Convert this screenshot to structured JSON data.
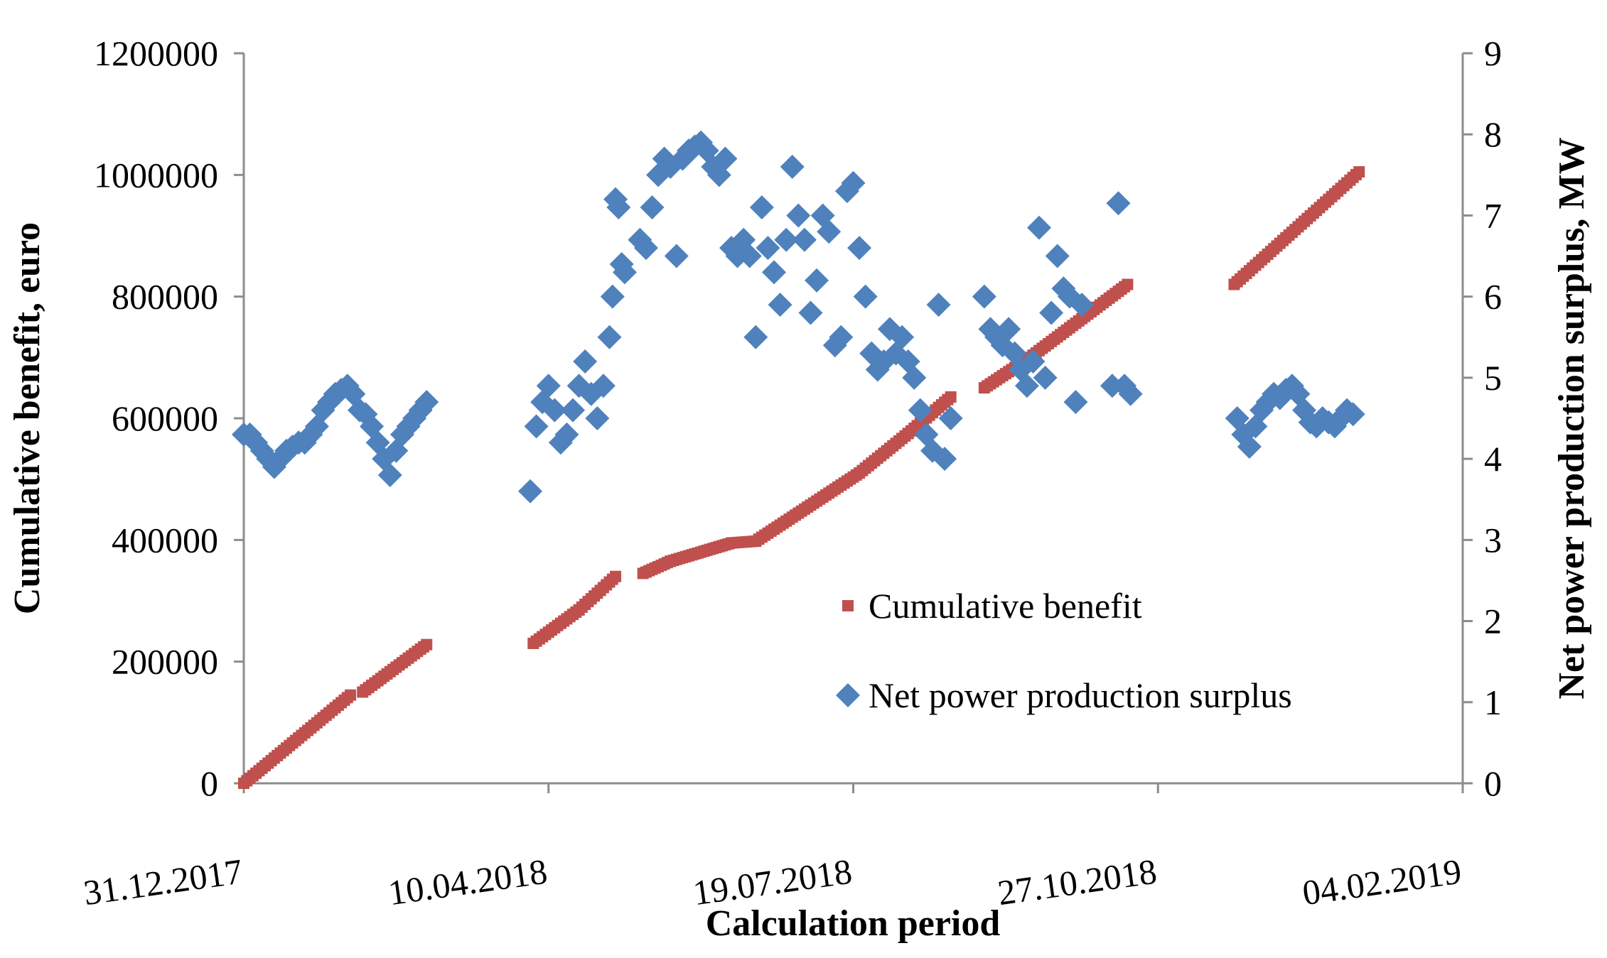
{
  "chart_data": {
    "type": "scatter",
    "title": "",
    "xlabel": "Calculation period",
    "ylabel_left": "Cumulative benefit, euro",
    "ylabel_right": "Net power production surplus, MW",
    "x_ticks": [
      "31.12.2017",
      "10.04.2018",
      "19.07.2018",
      "27.10.2018",
      "04.02.2019"
    ],
    "xlim_days": [
      0,
      400
    ],
    "ylim_left": [
      0,
      1200000
    ],
    "ylim_right": [
      0,
      9
    ],
    "y_ticks_left": [
      "0",
      "200000",
      "400000",
      "600000",
      "800000",
      "1000000",
      "1200000"
    ],
    "y_ticks_right": [
      "0",
      "1",
      "2",
      "3",
      "4",
      "5",
      "6",
      "7",
      "8",
      "9"
    ],
    "grid": false,
    "legend_position": "center-right",
    "colors": {
      "cumulative": "#c0504d",
      "surplus": "#4f81bd",
      "axis": "#8c8c8c"
    },
    "series": [
      {
        "name": "Cumulative benefit",
        "axis": "left",
        "marker": "square",
        "segments": [
          {
            "x": [
              0,
              35
            ],
            "y": [
              0,
              145000
            ]
          },
          {
            "x": [
              39,
              60
            ],
            "y": [
              150000,
              228000
            ]
          },
          {
            "x": [
              95,
              110
            ],
            "y": [
              230000,
              285000
            ]
          },
          {
            "x": [
              110,
              122
            ],
            "y": [
              285000,
              340000
            ]
          },
          {
            "x": [
              131,
              140
            ],
            "y": [
              345000,
              365000
            ]
          },
          {
            "x": [
              140,
              160
            ],
            "y": [
              365000,
              395000
            ]
          },
          {
            "x": [
              160,
              168
            ],
            "y": [
              395000,
              398000
            ]
          },
          {
            "x": [
              168,
              202
            ],
            "y": [
              398000,
              510000
            ]
          },
          {
            "x": [
              202,
              218
            ],
            "y": [
              510000,
              575000
            ]
          },
          {
            "x": [
              218,
              232
            ],
            "y": [
              575000,
              635000
            ]
          },
          {
            "x": [
              243,
              258
            ],
            "y": [
              650000,
              700000
            ]
          },
          {
            "x": [
              258,
              290
            ],
            "y": [
              700000,
              820000
            ]
          },
          {
            "x": [
              325,
              366
            ],
            "y": [
              820000,
              1005000
            ]
          }
        ]
      },
      {
        "name": "Net power production surplus",
        "axis": "right",
        "marker": "diamond",
        "points": [
          [
            0,
            4.3
          ],
          [
            2,
            4.3
          ],
          [
            4,
            4.2
          ],
          [
            6,
            4.1
          ],
          [
            8,
            4.0
          ],
          [
            10,
            3.9
          ],
          [
            12,
            4.0
          ],
          [
            14,
            4.1
          ],
          [
            16,
            4.15
          ],
          [
            18,
            4.2
          ],
          [
            20,
            4.2
          ],
          [
            22,
            4.3
          ],
          [
            24,
            4.4
          ],
          [
            26,
            4.6
          ],
          [
            28,
            4.7
          ],
          [
            30,
            4.8
          ],
          [
            32,
            4.85
          ],
          [
            34,
            4.9
          ],
          [
            36,
            4.8
          ],
          [
            38,
            4.6
          ],
          [
            40,
            4.55
          ],
          [
            42,
            4.4
          ],
          [
            44,
            4.2
          ],
          [
            46,
            4.0
          ],
          [
            48,
            3.8
          ],
          [
            50,
            4.1
          ],
          [
            52,
            4.3
          ],
          [
            54,
            4.4
          ],
          [
            56,
            4.5
          ],
          [
            58,
            4.6
          ],
          [
            60,
            4.7
          ],
          [
            94,
            3.6
          ],
          [
            96,
            4.4
          ],
          [
            98,
            4.7
          ],
          [
            100,
            4.9
          ],
          [
            102,
            4.6
          ],
          [
            104,
            4.2
          ],
          [
            106,
            4.3
          ],
          [
            108,
            4.6
          ],
          [
            110,
            4.9
          ],
          [
            112,
            5.2
          ],
          [
            114,
            4.8
          ],
          [
            116,
            4.5
          ],
          [
            118,
            4.9
          ],
          [
            120,
            5.5
          ],
          [
            121,
            6.0
          ],
          [
            122,
            7.2
          ],
          [
            123,
            7.1
          ],
          [
            124,
            6.4
          ],
          [
            125,
            6.3
          ],
          [
            130,
            6.7
          ],
          [
            132,
            6.6
          ],
          [
            134,
            7.1
          ],
          [
            136,
            7.5
          ],
          [
            138,
            7.7
          ],
          [
            140,
            7.6
          ],
          [
            142,
            6.5
          ],
          [
            144,
            7.7
          ],
          [
            146,
            7.8
          ],
          [
            148,
            7.85
          ],
          [
            150,
            7.9
          ],
          [
            152,
            7.8
          ],
          [
            154,
            7.6
          ],
          [
            156,
            7.5
          ],
          [
            158,
            7.7
          ],
          [
            160,
            6.6
          ],
          [
            162,
            6.5
          ],
          [
            164,
            6.7
          ],
          [
            166,
            6.5
          ],
          [
            168,
            5.5
          ],
          [
            170,
            7.1
          ],
          [
            172,
            6.6
          ],
          [
            174,
            6.3
          ],
          [
            176,
            5.9
          ],
          [
            178,
            6.7
          ],
          [
            180,
            7.6
          ],
          [
            182,
            7.0
          ],
          [
            184,
            6.7
          ],
          [
            186,
            5.8
          ],
          [
            188,
            6.2
          ],
          [
            190,
            7.0
          ],
          [
            192,
            6.8
          ],
          [
            194,
            5.4
          ],
          [
            196,
            5.5
          ],
          [
            198,
            7.3
          ],
          [
            200,
            7.4
          ],
          [
            202,
            6.6
          ],
          [
            204,
            6.0
          ],
          [
            206,
            5.3
          ],
          [
            208,
            5.1
          ],
          [
            210,
            5.2
          ],
          [
            212,
            5.6
          ],
          [
            214,
            5.3
          ],
          [
            216,
            5.5
          ],
          [
            218,
            5.2
          ],
          [
            220,
            5.0
          ],
          [
            222,
            4.6
          ],
          [
            224,
            4.3
          ],
          [
            226,
            4.1
          ],
          [
            228,
            5.9
          ],
          [
            230,
            4.0
          ],
          [
            232,
            4.5
          ],
          [
            243,
            6.0
          ],
          [
            245,
            5.6
          ],
          [
            247,
            5.5
          ],
          [
            249,
            5.4
          ],
          [
            251,
            5.6
          ],
          [
            253,
            5.3
          ],
          [
            255,
            5.1
          ],
          [
            257,
            4.9
          ],
          [
            259,
            5.2
          ],
          [
            261,
            6.85
          ],
          [
            263,
            5.0
          ],
          [
            265,
            5.8
          ],
          [
            267,
            6.5
          ],
          [
            269,
            6.1
          ],
          [
            271,
            6.0
          ],
          [
            273,
            4.7
          ],
          [
            275,
            5.9
          ],
          [
            285,
            4.9
          ],
          [
            287,
            7.15
          ],
          [
            289,
            4.9
          ],
          [
            291,
            4.8
          ],
          [
            326,
            4.5
          ],
          [
            328,
            4.3
          ],
          [
            330,
            4.15
          ],
          [
            332,
            4.4
          ],
          [
            334,
            4.6
          ],
          [
            336,
            4.7
          ],
          [
            338,
            4.8
          ],
          [
            340,
            4.75
          ],
          [
            342,
            4.85
          ],
          [
            344,
            4.9
          ],
          [
            346,
            4.8
          ],
          [
            348,
            4.6
          ],
          [
            350,
            4.45
          ],
          [
            352,
            4.4
          ],
          [
            354,
            4.5
          ],
          [
            356,
            4.45
          ],
          [
            358,
            4.4
          ],
          [
            360,
            4.5
          ],
          [
            362,
            4.6
          ],
          [
            364,
            4.55
          ]
        ]
      }
    ]
  }
}
